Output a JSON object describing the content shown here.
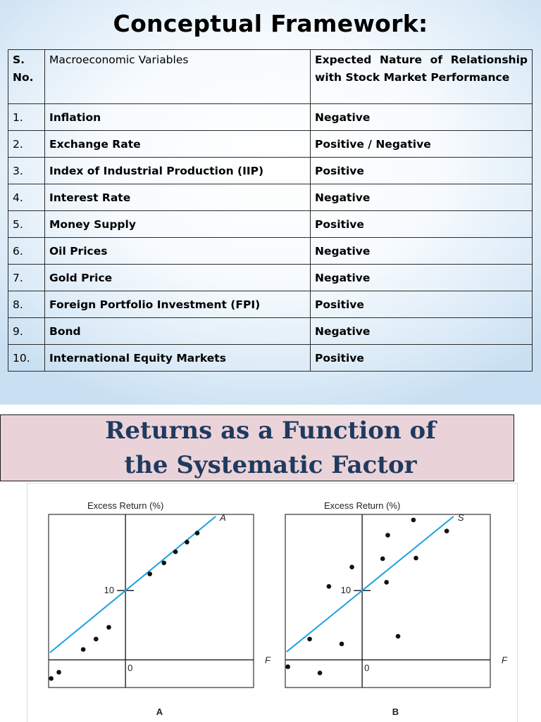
{
  "slide1": {
    "title": "Conceptual Framework:",
    "table": {
      "headers": {
        "sn": "S. No.",
        "variable": "Macroeconomic Variables",
        "relationship": "Expected Nature of Relationship with Stock Market Performance"
      },
      "rows": [
        {
          "sn": "1.",
          "variable": "Inflation",
          "relationship": "Negative"
        },
        {
          "sn": "2.",
          "variable": "Exchange Rate",
          "relationship": "Positive / Negative"
        },
        {
          "sn": "3.",
          "variable": "Index of Industrial Production (IIP)",
          "relationship": "Positive"
        },
        {
          "sn": "4.",
          "variable": "Interest Rate",
          "relationship": "Negative"
        },
        {
          "sn": "5.",
          "variable": "Money Supply",
          "relationship": "Positive"
        },
        {
          "sn": "6.",
          "variable": "Oil Prices",
          "relationship": "Negative"
        },
        {
          "sn": "7.",
          "variable": "Gold Price",
          "relationship": "Negative"
        },
        {
          "sn": "8.",
          "variable": "Foreign Portfolio Investment (FPI)",
          "relationship": "Positive"
        },
        {
          "sn": "9.",
          "variable": "Bond",
          "relationship": "Negative"
        },
        {
          "sn": "10.",
          "variable": "International Equity Markets",
          "relationship": "Positive"
        }
      ]
    }
  },
  "slide2": {
    "title_line1": "Returns as a Function of",
    "title_line2": "the Systematic Factor",
    "colors": {
      "fit_line": "#1aa3e0",
      "banner": "#ead3d8",
      "title": "#1f3a5f"
    }
  },
  "chart_data": [
    {
      "type": "scatter",
      "panel_label": "A",
      "ylabel": "Excess Return (%)",
      "xlabel": "F",
      "series_label": "A",
      "origin_label": "0",
      "y_tick_label": "10",
      "xlim": [
        -6,
        10
      ],
      "ylim": [
        -4,
        21
      ],
      "fit_line": {
        "intercept": 10,
        "slope": 1.52
      },
      "points": [
        [
          -5.8,
          -2.7
        ],
        [
          -5.2,
          -1.8
        ],
        [
          -3.3,
          1.5
        ],
        [
          -2.3,
          3.0
        ],
        [
          -1.3,
          4.7
        ],
        [
          1.9,
          12.4
        ],
        [
          3.0,
          14.0
        ],
        [
          3.9,
          15.6
        ],
        [
          4.8,
          17.0
        ],
        [
          5.6,
          18.3
        ]
      ]
    },
    {
      "type": "scatter",
      "panel_label": "B",
      "ylabel": "Excess Return (%)",
      "xlabel": "F",
      "series_label": "S",
      "origin_label": "0",
      "y_tick_label": "10",
      "xlim": [
        -6,
        10
      ],
      "ylim": [
        -4,
        21
      ],
      "fit_line": {
        "intercept": 10,
        "slope": 1.5
      },
      "points": [
        [
          -5.8,
          -1.0
        ],
        [
          -4.1,
          3.0
        ],
        [
          -3.3,
          -1.9
        ],
        [
          -2.6,
          10.6
        ],
        [
          -1.6,
          2.3
        ],
        [
          -0.8,
          13.4
        ],
        [
          1.6,
          14.6
        ],
        [
          1.9,
          11.2
        ],
        [
          2.0,
          18.0
        ],
        [
          2.8,
          3.4
        ],
        [
          4.0,
          20.2
        ],
        [
          4.2,
          14.7
        ],
        [
          6.6,
          18.6
        ]
      ]
    }
  ]
}
